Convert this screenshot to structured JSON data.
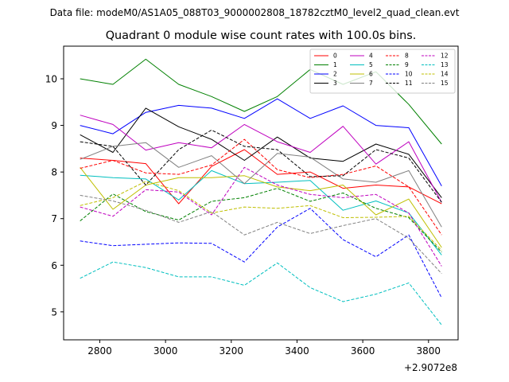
{
  "figure": {
    "suptitle": "Data file: modeM0/AS1A05_088T03_9000002808_18782cztM0_level2_quad_clean.evt"
  },
  "chart_data": {
    "type": "line",
    "title": "Quadrant 0 module wise count rates with 100.0s bins.",
    "xlabel": "",
    "ylabel": "",
    "x_offset_label": "+2.9072e8",
    "x": [
      2740,
      2840,
      2940,
      3040,
      3140,
      3240,
      3340,
      3440,
      3540,
      3640,
      3740,
      3840
    ],
    "xlim": [
      2690,
      3890
    ],
    "ylim": [
      4.4,
      10.7
    ],
    "xticks": [
      2800,
      3000,
      3200,
      3400,
      3600,
      3800
    ],
    "xtick_labels": [
      "2800",
      "3000",
      "3200",
      "3400",
      "3600",
      "3800"
    ],
    "yticks": [
      5,
      6,
      7,
      8,
      9,
      10
    ],
    "ytick_labels": [
      "5",
      "6",
      "7",
      "8",
      "9",
      "10"
    ],
    "grid": false,
    "legend": {
      "placement": "top-right",
      "columns": 4
    },
    "series": [
      {
        "name": "0",
        "color": "#ff0000",
        "dash": "solid",
        "values": [
          8.3,
          8.25,
          8.18,
          7.32,
          8.12,
          8.48,
          7.95,
          8.0,
          7.65,
          7.72,
          7.68,
          7.32
        ]
      },
      {
        "name": "1",
        "color": "#008000",
        "dash": "solid",
        "values": [
          10.0,
          9.88,
          10.42,
          9.88,
          9.62,
          9.3,
          9.62,
          10.2,
          9.88,
          10.15,
          9.45,
          8.6
        ]
      },
      {
        "name": "2",
        "color": "#0000ff",
        "dash": "solid",
        "values": [
          9.0,
          8.82,
          9.28,
          9.43,
          9.37,
          9.15,
          9.57,
          9.15,
          9.42,
          9.0,
          8.95,
          7.7
        ]
      },
      {
        "name": "3",
        "color": "#000000",
        "dash": "solid",
        "values": [
          8.8,
          8.42,
          9.37,
          8.97,
          8.7,
          8.25,
          8.75,
          8.3,
          8.23,
          8.6,
          8.38,
          7.45
        ]
      },
      {
        "name": "4",
        "color": "#bf00bf",
        "dash": "solid",
        "values": [
          9.22,
          9.02,
          8.47,
          8.63,
          8.52,
          9.02,
          8.65,
          8.42,
          8.98,
          8.17,
          8.65,
          7.35
        ]
      },
      {
        "name": "5",
        "color": "#00bfbf",
        "dash": "solid",
        "values": [
          7.93,
          7.88,
          7.85,
          7.4,
          8.03,
          7.75,
          7.78,
          7.82,
          7.18,
          7.38,
          7.12,
          6.22
        ]
      },
      {
        "name": "6",
        "color": "#bfbf00",
        "dash": "solid",
        "values": [
          8.1,
          7.2,
          7.72,
          7.88,
          7.88,
          7.92,
          7.68,
          7.6,
          7.72,
          7.08,
          7.42,
          6.38
        ]
      },
      {
        "name": "7",
        "color": "#808080",
        "dash": "solid",
        "values": [
          8.27,
          8.55,
          8.63,
          8.1,
          8.35,
          7.75,
          8.4,
          8.32,
          7.85,
          7.78,
          8.03,
          6.82
        ]
      },
      {
        "name": "8",
        "color": "#ff0000",
        "dash": "dashed",
        "values": [
          8.08,
          8.25,
          7.98,
          7.95,
          8.15,
          8.7,
          8.05,
          7.88,
          7.95,
          8.13,
          7.68,
          6.65
        ]
      },
      {
        "name": "9",
        "color": "#008000",
        "dash": "dashed",
        "values": [
          6.95,
          7.53,
          7.15,
          6.97,
          7.37,
          7.45,
          7.65,
          7.37,
          7.55,
          7.22,
          7.02,
          6.28
        ]
      },
      {
        "name": "10",
        "color": "#0000ff",
        "dash": "dashed",
        "values": [
          6.52,
          6.42,
          6.45,
          6.48,
          6.47,
          6.07,
          6.82,
          7.22,
          6.55,
          6.18,
          6.65,
          5.3
        ]
      },
      {
        "name": "11",
        "color": "#000000",
        "dash": "dashed",
        "values": [
          8.65,
          8.55,
          7.72,
          8.48,
          8.9,
          8.55,
          8.48,
          7.9,
          7.92,
          8.48,
          8.3,
          7.35
        ]
      },
      {
        "name": "12",
        "color": "#bf00bf",
        "dash": "dashed",
        "values": [
          7.25,
          7.05,
          7.62,
          7.57,
          7.08,
          8.1,
          7.72,
          7.52,
          7.45,
          7.52,
          7.12,
          5.98
        ]
      },
      {
        "name": "13",
        "color": "#00bfbf",
        "dash": "dashed",
        "values": [
          5.72,
          6.07,
          5.95,
          5.75,
          5.75,
          5.57,
          6.05,
          5.52,
          5.22,
          5.38,
          5.62,
          4.72
        ]
      },
      {
        "name": "14",
        "color": "#bfbf00",
        "dash": "dashed",
        "values": [
          7.28,
          7.45,
          7.8,
          7.6,
          7.12,
          7.25,
          7.22,
          7.28,
          7.02,
          7.03,
          7.05,
          6.32
        ]
      },
      {
        "name": "15",
        "color": "#808080",
        "dash": "dashed",
        "values": [
          7.5,
          7.38,
          7.18,
          6.92,
          7.15,
          6.65,
          6.92,
          6.68,
          6.85,
          7.0,
          6.58,
          5.82
        ]
      }
    ]
  }
}
